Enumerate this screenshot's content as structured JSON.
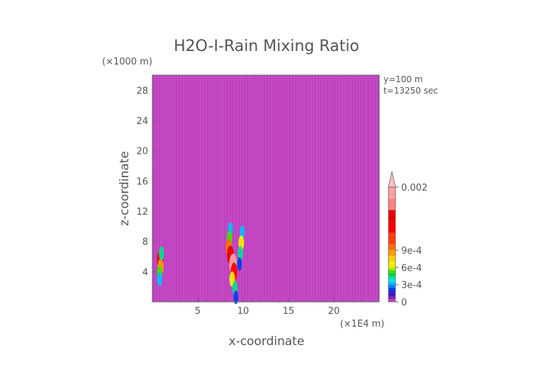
{
  "chart_data": {
    "type": "heatmap",
    "title": "H2O-I-Rain Mixing Ratio",
    "xlabel": "x-coordinate",
    "ylabel": "z-coordinate",
    "x_unit": "(×1E4 m)",
    "y_unit": "(×1000 m)",
    "xlim": [
      0,
      25
    ],
    "ylim": [
      0,
      30
    ],
    "x_ticks": [
      5,
      10,
      15,
      20
    ],
    "y_ticks": [
      4,
      8,
      12,
      16,
      20,
      24,
      28
    ],
    "annotations": [
      "y=100 m",
      "t=13250 sec"
    ],
    "background_value": 0,
    "colorbar": {
      "labels": [
        {
          "text": "0.002",
          "value": 0.002
        },
        {
          "text": "9e-4",
          "value": 0.0009
        },
        {
          "text": "6e-4",
          "value": 0.0006
        },
        {
          "text": "3e-4",
          "value": 0.0003
        },
        {
          "text": "0",
          "value": 0
        }
      ],
      "levels": [
        {
          "value": 0,
          "color": "#c040c0"
        },
        {
          "value": 5e-05,
          "color": "#8020c0"
        },
        {
          "value": 0.0001,
          "color": "#4010c0"
        },
        {
          "value": 0.00015,
          "color": "#2020d0"
        },
        {
          "value": 0.0002,
          "color": "#0040f0"
        },
        {
          "value": 0.00025,
          "color": "#0080ff"
        },
        {
          "value": 0.0003,
          "color": "#00c0ff"
        },
        {
          "value": 0.00035,
          "color": "#00e8e0"
        },
        {
          "value": 0.0004,
          "color": "#00e090"
        },
        {
          "value": 0.00045,
          "color": "#00d040"
        },
        {
          "value": 0.0005,
          "color": "#40e000"
        },
        {
          "value": 0.00055,
          "color": "#a0f000"
        },
        {
          "value": 0.0006,
          "color": "#f0f000"
        },
        {
          "value": 0.0007,
          "color": "#ffd000"
        },
        {
          "value": 0.0008,
          "color": "#ffa000"
        },
        {
          "value": 0.0009,
          "color": "#ff7000"
        },
        {
          "value": 0.001,
          "color": "#ff4000"
        },
        {
          "value": 0.0012,
          "color": "#ff0000"
        },
        {
          "value": 0.0014,
          "color": "#e80000"
        },
        {
          "value": 0.0016,
          "color": "#ff8080"
        },
        {
          "value": 0.0018,
          "color": "#ffa0a0"
        },
        {
          "value": 0.002,
          "color": "#ffc0c0"
        }
      ]
    },
    "features": [
      {
        "name": "left-cell",
        "points": [
          {
            "x": 0.85,
            "z": 5.6,
            "v": 0.0012
          },
          {
            "x": 0.9,
            "z": 4.6,
            "v": 0.0008
          },
          {
            "x": 0.8,
            "z": 3.8,
            "v": 0.0005
          },
          {
            "x": 1.0,
            "z": 6.4,
            "v": 0.0004
          },
          {
            "x": 0.8,
            "z": 3.0,
            "v": 0.0003
          }
        ]
      },
      {
        "name": "main-cell",
        "points": [
          {
            "x": 8.6,
            "z": 9.6,
            "v": 0.0003
          },
          {
            "x": 8.5,
            "z": 8.4,
            "v": 0.0005
          },
          {
            "x": 8.4,
            "z": 7.2,
            "v": 0.0009
          },
          {
            "x": 8.6,
            "z": 6.2,
            "v": 0.0014
          },
          {
            "x": 8.9,
            "z": 5.0,
            "v": 0.0018
          },
          {
            "x": 9.0,
            "z": 4.0,
            "v": 0.0012
          },
          {
            "x": 8.8,
            "z": 3.0,
            "v": 0.0006
          },
          {
            "x": 9.1,
            "z": 1.8,
            "v": 0.0004
          },
          {
            "x": 9.2,
            "z": 0.6,
            "v": 0.0002
          }
        ]
      },
      {
        "name": "right-cell",
        "points": [
          {
            "x": 9.9,
            "z": 9.2,
            "v": 0.0003
          },
          {
            "x": 9.8,
            "z": 7.8,
            "v": 0.0006
          },
          {
            "x": 9.7,
            "z": 6.4,
            "v": 0.0004
          },
          {
            "x": 9.6,
            "z": 5.0,
            "v": 0.0002
          }
        ]
      }
    ]
  }
}
